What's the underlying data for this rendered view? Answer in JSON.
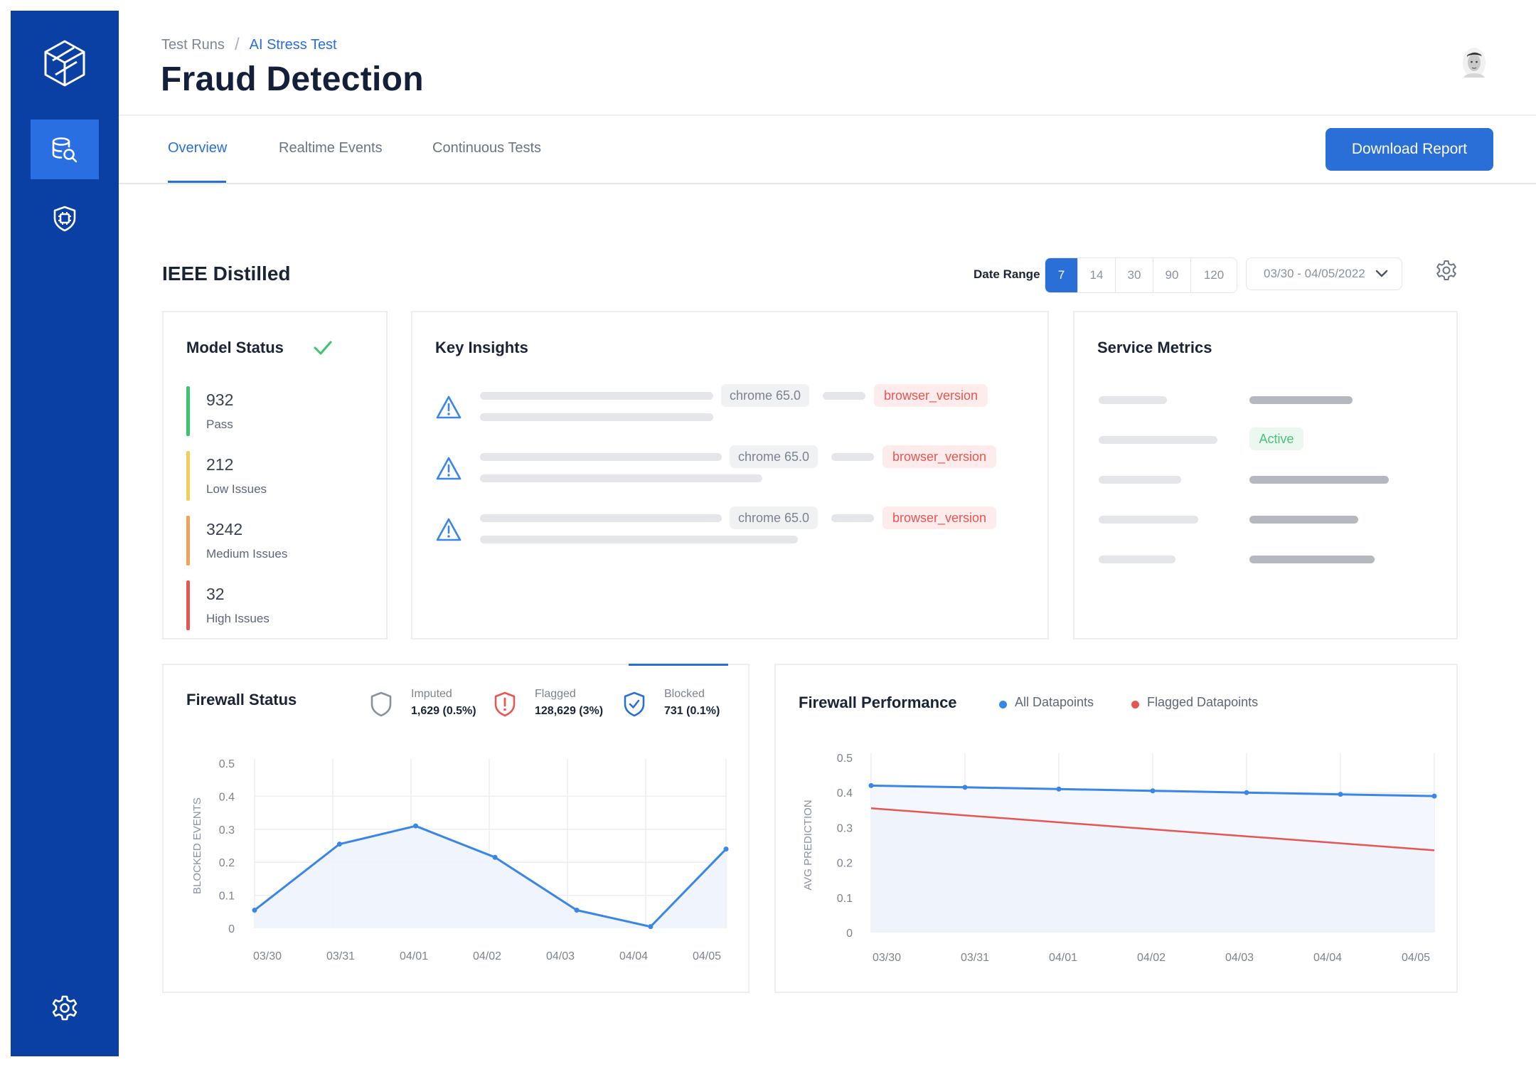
{
  "nav": {
    "logo": "cube-logo",
    "items": [
      {
        "icon": "database-search-icon",
        "active": true
      },
      {
        "icon": "shield-chip-icon",
        "active": false
      },
      {
        "icon": "settings-gear-icon",
        "active": false
      }
    ]
  },
  "header": {
    "breadcrumb": [
      "Test Runs",
      "AI Stress Test"
    ],
    "title": "Fraud Detection",
    "avatar": "user-avatar"
  },
  "tabs": [
    "Overview",
    "Realtime Events",
    "Continuous Tests"
  ],
  "active_tab": "Overview",
  "download_label": "Download Report",
  "section": {
    "title": "IEEE Distilled",
    "date_range_label": "Date Range",
    "ranges": [
      "7",
      "14",
      "30",
      "90",
      "120"
    ],
    "selected_range": "7",
    "date_value": "03/30 - 04/05/2022"
  },
  "model_status": {
    "title": "Model Status",
    "items": [
      {
        "value": "932",
        "label": "Pass",
        "color": "#3ec46d"
      },
      {
        "value": "212",
        "label": "Low Issues",
        "color": "#f3cd5a"
      },
      {
        "value": "3242",
        "label": "Medium Issues",
        "color": "#f2a05a"
      },
      {
        "value": "32",
        "label": "High Issues",
        "color": "#e45753"
      }
    ]
  },
  "key_insights": {
    "title": "Key Insights",
    "rows": [
      {
        "tag": "chrome 65.0",
        "field": "browser_version"
      },
      {
        "tag": "chrome 65.0",
        "field": "browser_version"
      },
      {
        "tag": "chrome 65.0",
        "field": "browser_version"
      }
    ]
  },
  "service_metrics": {
    "title": "Service Metrics",
    "status": "Active"
  },
  "firewall_status": {
    "title": "Firewall Status",
    "legend": [
      {
        "name": "Imputed",
        "value": "1,629 (0.5%)",
        "icon": "shield-outline-icon"
      },
      {
        "name": "Flagged",
        "value": "128,629 (3%)",
        "icon": "shield-alert-icon"
      },
      {
        "name": "Blocked",
        "value": "731 (0.1%)",
        "icon": "shield-check-icon"
      }
    ]
  },
  "firewall_performance": {
    "title": "Firewall Performance",
    "legend": [
      "All Datapoints",
      "Flagged Datapoints"
    ]
  },
  "chart_data": [
    {
      "type": "area",
      "title": "Firewall Status",
      "xlabel": "",
      "ylabel": "BLOCKED EVENTS",
      "categories": [
        "03/30",
        "03/31",
        "04/01",
        "04/02",
        "04/03",
        "04/04",
        "04/05"
      ],
      "ylim": [
        0,
        0.5
      ],
      "yticks": [
        "0.5",
        "0.4",
        "0.3",
        "0.2",
        "0.1",
        "0"
      ],
      "series": [
        {
          "x": [
            0,
            1.08,
            2.05,
            3.06,
            4.1,
            5.04,
            6.0
          ],
          "values": [
            0.055,
            0.255,
            0.31,
            0.215,
            0.055,
            0.005,
            0.24
          ],
          "color": "#3a86e8"
        }
      ],
      "grid": true
    },
    {
      "type": "line",
      "title": "Firewall Performance",
      "xlabel": "",
      "ylabel": "AVG PREDICTION",
      "categories": [
        "03/30",
        "03/31",
        "04/01",
        "04/02",
        "04/03",
        "04/04",
        "04/05"
      ],
      "ylim": [
        0,
        0.5
      ],
      "yticks": [
        "0.5",
        "0.4",
        "0.3",
        "0.2",
        "0.1",
        "0"
      ],
      "series": [
        {
          "name": "All Datapoints",
          "values": [
            0.42,
            0.415,
            0.41,
            0.405,
            0.4,
            0.395,
            0.39
          ],
          "color": "#3a86e8"
        },
        {
          "name": "Flagged Datapoints",
          "values": [
            0.355,
            0.335,
            0.315,
            0.295,
            0.275,
            0.255,
            0.235
          ],
          "color": "#e45753"
        }
      ],
      "grid": true,
      "legend": "top"
    }
  ]
}
